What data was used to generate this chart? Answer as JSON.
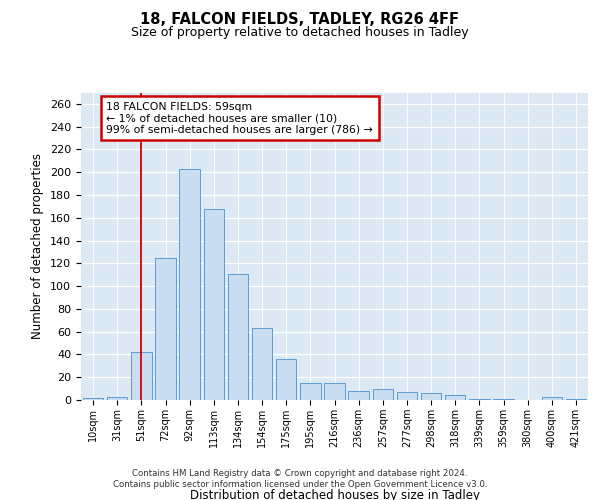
{
  "title1": "18, FALCON FIELDS, TADLEY, RG26 4FF",
  "title2": "Size of property relative to detached houses in Tadley",
  "xlabel": "Distribution of detached houses by size in Tadley",
  "ylabel": "Number of detached properties",
  "categories": [
    "10sqm",
    "31sqm",
    "51sqm",
    "72sqm",
    "92sqm",
    "113sqm",
    "134sqm",
    "154sqm",
    "175sqm",
    "195sqm",
    "216sqm",
    "236sqm",
    "257sqm",
    "277sqm",
    "298sqm",
    "318sqm",
    "339sqm",
    "359sqm",
    "380sqm",
    "400sqm",
    "421sqm"
  ],
  "values": [
    2,
    3,
    42,
    125,
    203,
    168,
    111,
    63,
    36,
    15,
    15,
    8,
    10,
    7,
    6,
    4,
    1,
    1,
    0,
    3,
    1
  ],
  "bar_color": "#c9dcf0",
  "bar_edge_color": "#5b9bd5",
  "vline_x": 2,
  "vline_color": "#cc0000",
  "annotation_text": "18 FALCON FIELDS: 59sqm\n← 1% of detached houses are smaller (10)\n99% of semi-detached houses are larger (786) →",
  "annotation_box_color": "#ffffff",
  "annotation_box_edge_color": "#cc0000",
  "ylim": [
    0,
    270
  ],
  "yticks": [
    0,
    20,
    40,
    60,
    80,
    100,
    120,
    140,
    160,
    180,
    200,
    220,
    240,
    260
  ],
  "bg_color": "#ffffff",
  "plot_bg_color": "#dce9f5",
  "footer1": "Contains HM Land Registry data © Crown copyright and database right 2024.",
  "footer2": "Contains public sector information licensed under the Open Government Licence v3.0."
}
